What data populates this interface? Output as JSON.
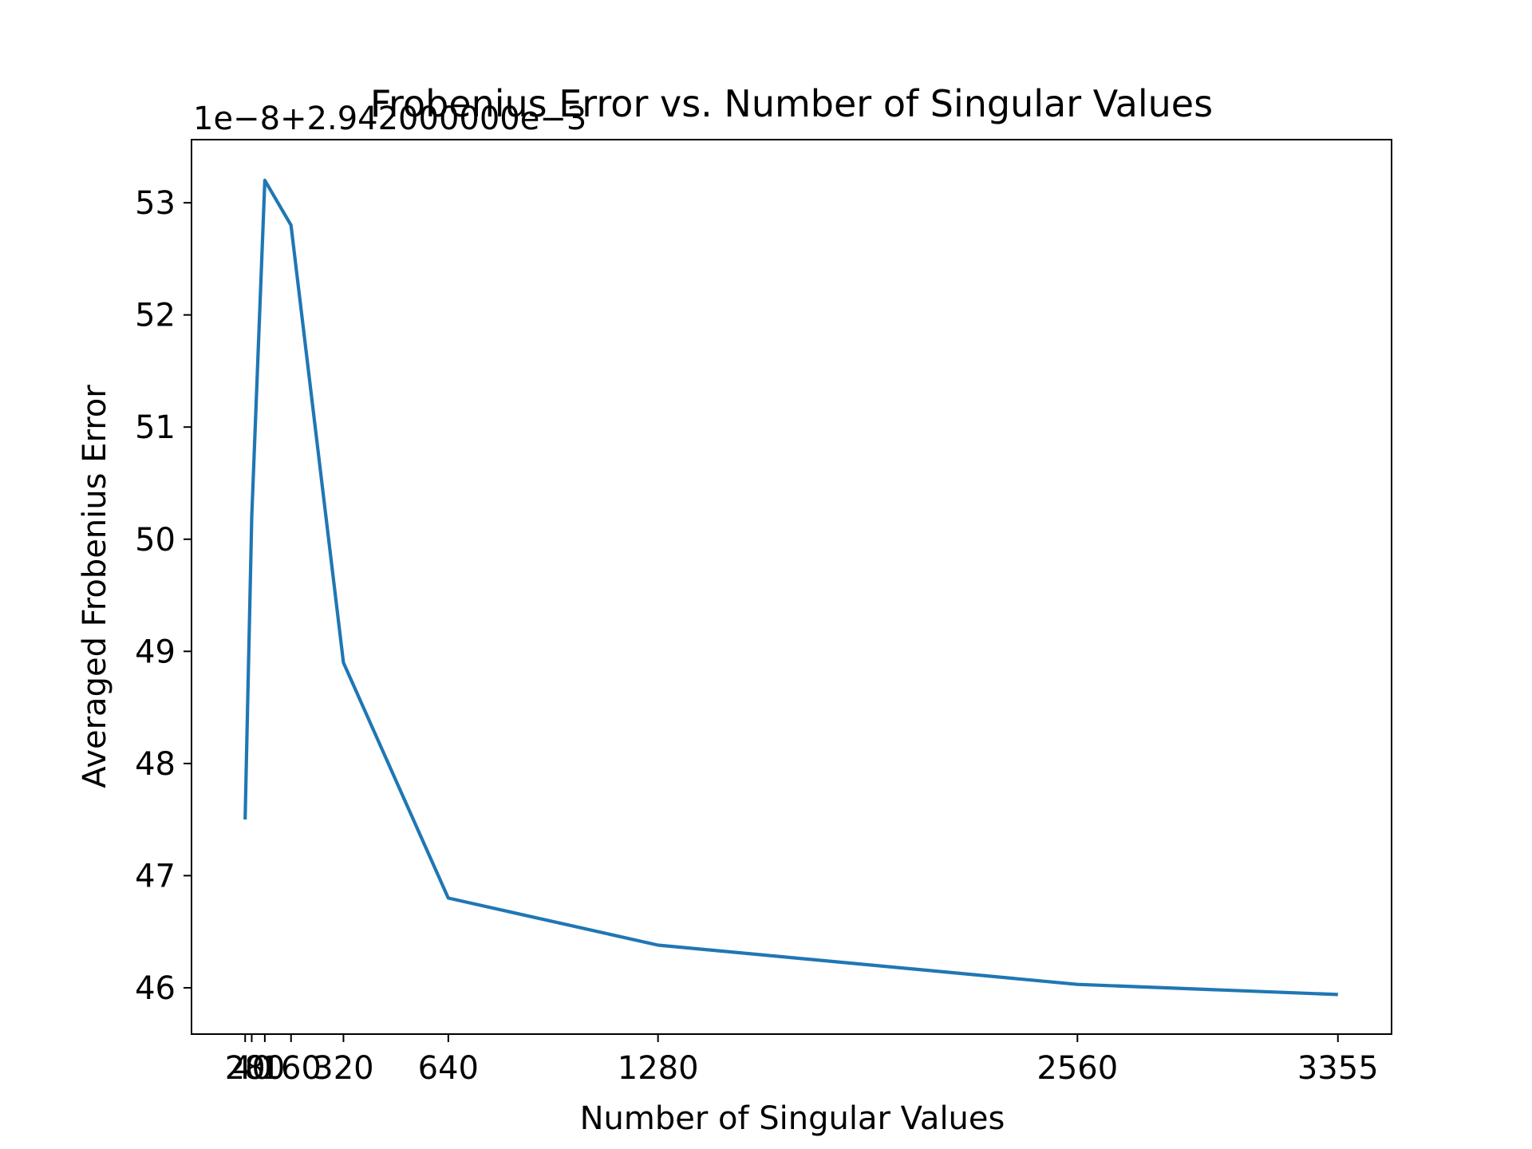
{
  "chart_data": {
    "type": "line",
    "title": "Frobenius Error vs. Number of Singular Values",
    "xlabel": "Number of Singular Values",
    "ylabel": "Averaged Frobenius Error",
    "y_offset_label": "1e−8+2.942000000e−3",
    "x": [
      20,
      40,
      80,
      160,
      320,
      640,
      1280,
      2560,
      3355
    ],
    "x_tick_labels": [
      "20",
      "40",
      "80",
      "160",
      "320",
      "640",
      "1280",
      "2560",
      "3355"
    ],
    "y": [
      47.5,
      50.2,
      53.2,
      52.8,
      48.9,
      46.8,
      46.38,
      46.03,
      45.94
    ],
    "y_ticks": [
      46,
      47,
      48,
      49,
      50,
      51,
      52,
      53
    ],
    "y_tick_labels": [
      "46",
      "47",
      "48",
      "49",
      "50",
      "51",
      "52",
      "53"
    ],
    "xlim": [
      -143.75,
      3518.75
    ],
    "ylim": [
      45.587,
      53.563
    ],
    "grid": false,
    "line_color": "#1f77b4"
  }
}
